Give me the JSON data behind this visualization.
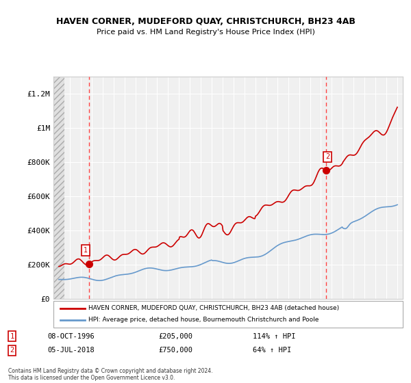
{
  "title": "HAVEN CORNER, MUDEFORD QUAY, CHRISTCHURCH, BH23 4AB",
  "subtitle": "Price paid vs. HM Land Registry's House Price Index (HPI)",
  "ylabel": "",
  "ylim": [
    0,
    1300000
  ],
  "xlim": [
    1993.5,
    2025.5
  ],
  "background_color": "#ffffff",
  "plot_bg_color": "#f0f0f0",
  "grid_color": "#ffffff",
  "hatch_color": "#cccccc",
  "red_line_color": "#cc0000",
  "blue_line_color": "#6699cc",
  "marker_color": "#cc0000",
  "dashed_line_color": "#ff4444",
  "legend_label_red": "HAVEN CORNER, MUDEFORD QUAY, CHRISTCHURCH, BH23 4AB (detached house)",
  "legend_label_blue": "HPI: Average price, detached house, Bournemouth Christchurch and Poole",
  "transaction1_label": "1",
  "transaction1_date": "08-OCT-1996",
  "transaction1_price": "£205,000",
  "transaction1_hpi": "114% ↑ HPI",
  "transaction2_label": "2",
  "transaction2_date": "05-JUL-2018",
  "transaction2_price": "£750,000",
  "transaction2_hpi": "64% ↑ HPI",
  "footer": "Contains HM Land Registry data © Crown copyright and database right 2024.\nThis data is licensed under the Open Government Licence v3.0.",
  "yticks": [
    0,
    200000,
    400000,
    600000,
    800000,
    1000000,
    1200000
  ],
  "ytick_labels": [
    "£0",
    "£200K",
    "£400K",
    "£600K",
    "£800K",
    "£1M",
    "£1.2M"
  ],
  "xticks": [
    1994,
    1995,
    1996,
    1997,
    1998,
    1999,
    2000,
    2001,
    2002,
    2003,
    2004,
    2005,
    2006,
    2007,
    2008,
    2009,
    2010,
    2011,
    2012,
    2013,
    2014,
    2015,
    2016,
    2017,
    2018,
    2019,
    2020,
    2021,
    2022,
    2023,
    2024,
    2025
  ],
  "transaction1_x": 1996.77,
  "transaction1_y": 205000,
  "transaction2_x": 2018.5,
  "transaction2_y": 750000
}
